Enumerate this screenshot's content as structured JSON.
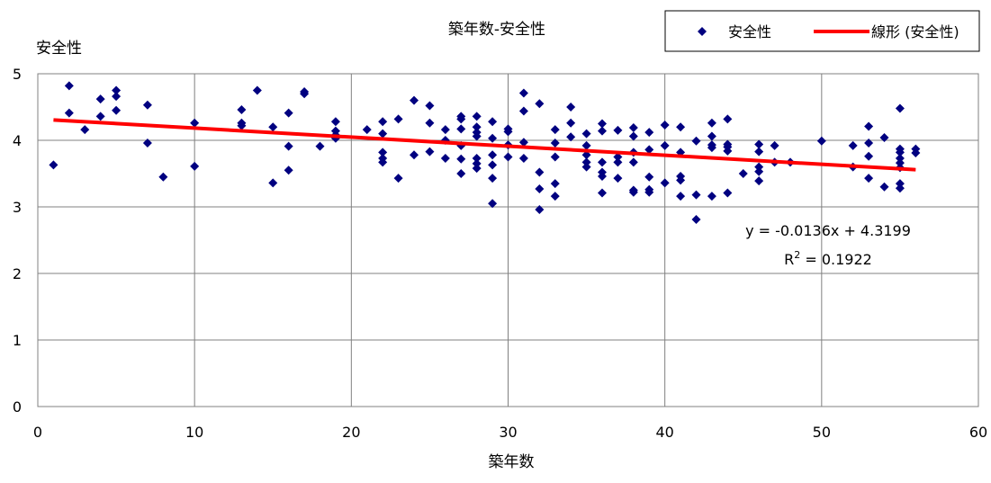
{
  "chart_data": {
    "type": "scatter",
    "title": "築年数-安全性",
    "xlabel": "築年数",
    "ylabel": "安全性",
    "xlim": [
      0,
      60
    ],
    "ylim": [
      0,
      5
    ],
    "xticks": [
      "0",
      "10",
      "20",
      "30",
      "40",
      "50",
      "60"
    ],
    "yticks": [
      "0",
      "1",
      "2",
      "3",
      "4",
      "5"
    ],
    "grid": true,
    "legend_position": "top-right",
    "series": [
      {
        "name": "安全性",
        "color": "#000080",
        "marker": "diamond",
        "points": [
          [
            1,
            3.63
          ],
          [
            2,
            4.82
          ],
          [
            2,
            4.41
          ],
          [
            3,
            4.16
          ],
          [
            4,
            4.62
          ],
          [
            4,
            4.36
          ],
          [
            5,
            4.75
          ],
          [
            5,
            4.66
          ],
          [
            5,
            4.45
          ],
          [
            7,
            4.53
          ],
          [
            7,
            3.96
          ],
          [
            8,
            3.45
          ],
          [
            10,
            4.26
          ],
          [
            10,
            3.61
          ],
          [
            13,
            4.46
          ],
          [
            13,
            4.26
          ],
          [
            13,
            4.22
          ],
          [
            14,
            4.75
          ],
          [
            15,
            4.2
          ],
          [
            15,
            3.36
          ],
          [
            16,
            4.41
          ],
          [
            16,
            3.91
          ],
          [
            16,
            3.55
          ],
          [
            17,
            4.73
          ],
          [
            17,
            4.7
          ],
          [
            18,
            3.91
          ],
          [
            19,
            4.28
          ],
          [
            19,
            4.14
          ],
          [
            19,
            4.08
          ],
          [
            19,
            4.03
          ],
          [
            21,
            4.16
          ],
          [
            22,
            4.28
          ],
          [
            22,
            4.1
          ],
          [
            22,
            3.82
          ],
          [
            22,
            3.73
          ],
          [
            22,
            3.67
          ],
          [
            23,
            4.32
          ],
          [
            23,
            3.43
          ],
          [
            24,
            4.6
          ],
          [
            24,
            3.78
          ],
          [
            25,
            4.52
          ],
          [
            25,
            4.26
          ],
          [
            25,
            3.83
          ],
          [
            26,
            4.16
          ],
          [
            26,
            4.0
          ],
          [
            26,
            3.73
          ],
          [
            27,
            4.36
          ],
          [
            27,
            4.32
          ],
          [
            27,
            4.17
          ],
          [
            27,
            3.92
          ],
          [
            27,
            3.72
          ],
          [
            27,
            3.5
          ],
          [
            28,
            4.36
          ],
          [
            28,
            4.2
          ],
          [
            28,
            4.12
          ],
          [
            28,
            4.06
          ],
          [
            28,
            3.73
          ],
          [
            28,
            3.65
          ],
          [
            28,
            3.58
          ],
          [
            29,
            4.28
          ],
          [
            29,
            4.03
          ],
          [
            29,
            3.78
          ],
          [
            29,
            3.63
          ],
          [
            29,
            3.43
          ],
          [
            29,
            3.05
          ],
          [
            30,
            4.17
          ],
          [
            30,
            4.13
          ],
          [
            30,
            3.93
          ],
          [
            30,
            3.75
          ],
          [
            31,
            4.71
          ],
          [
            31,
            4.44
          ],
          [
            31,
            3.97
          ],
          [
            31,
            3.73
          ],
          [
            32,
            4.55
          ],
          [
            32,
            3.52
          ],
          [
            32,
            3.27
          ],
          [
            32,
            2.96
          ],
          [
            33,
            4.16
          ],
          [
            33,
            3.96
          ],
          [
            33,
            3.75
          ],
          [
            33,
            3.35
          ],
          [
            33,
            3.16
          ],
          [
            34,
            4.5
          ],
          [
            34,
            4.26
          ],
          [
            34,
            4.05
          ],
          [
            35,
            4.1
          ],
          [
            35,
            3.92
          ],
          [
            35,
            3.78
          ],
          [
            35,
            3.67
          ],
          [
            35,
            3.6
          ],
          [
            36,
            4.25
          ],
          [
            36,
            4.14
          ],
          [
            36,
            3.67
          ],
          [
            36,
            3.52
          ],
          [
            36,
            3.46
          ],
          [
            36,
            3.21
          ],
          [
            37,
            4.15
          ],
          [
            37,
            3.75
          ],
          [
            37,
            3.67
          ],
          [
            37,
            3.43
          ],
          [
            38,
            4.19
          ],
          [
            38,
            4.06
          ],
          [
            38,
            3.82
          ],
          [
            38,
            3.67
          ],
          [
            38,
            3.25
          ],
          [
            38,
            3.22
          ],
          [
            39,
            4.12
          ],
          [
            39,
            3.86
          ],
          [
            39,
            3.45
          ],
          [
            39,
            3.26
          ],
          [
            39,
            3.22
          ],
          [
            40,
            4.23
          ],
          [
            40,
            3.92
          ],
          [
            40,
            3.36
          ],
          [
            41,
            4.2
          ],
          [
            41,
            3.82
          ],
          [
            41,
            3.46
          ],
          [
            41,
            3.4
          ],
          [
            41,
            3.16
          ],
          [
            42,
            3.99
          ],
          [
            42,
            3.18
          ],
          [
            42,
            2.81
          ],
          [
            43,
            4.26
          ],
          [
            43,
            4.06
          ],
          [
            43,
            3.93
          ],
          [
            43,
            3.89
          ],
          [
            43,
            3.16
          ],
          [
            44,
            4.32
          ],
          [
            44,
            3.94
          ],
          [
            44,
            3.9
          ],
          [
            44,
            3.84
          ],
          [
            44,
            3.21
          ],
          [
            45,
            3.5
          ],
          [
            46,
            3.94
          ],
          [
            46,
            3.83
          ],
          [
            46,
            3.6
          ],
          [
            46,
            3.53
          ],
          [
            46,
            3.39
          ],
          [
            47,
            3.92
          ],
          [
            47,
            3.67
          ],
          [
            48,
            3.67
          ],
          [
            50,
            3.99
          ],
          [
            52,
            3.92
          ],
          [
            52,
            3.6
          ],
          [
            53,
            4.21
          ],
          [
            53,
            3.96
          ],
          [
            53,
            3.76
          ],
          [
            53,
            3.43
          ],
          [
            54,
            4.04
          ],
          [
            54,
            3.3
          ],
          [
            55,
            4.48
          ],
          [
            55,
            3.87
          ],
          [
            55,
            3.82
          ],
          [
            55,
            3.73
          ],
          [
            55,
            3.66
          ],
          [
            55,
            3.59
          ],
          [
            55,
            3.35
          ],
          [
            55,
            3.28
          ],
          [
            56,
            3.87
          ],
          [
            56,
            3.81
          ]
        ]
      },
      {
        "name": "線形 (安全性)",
        "type": "line",
        "color": "#ff0000",
        "slope": -0.0136,
        "intercept": 4.3199,
        "x_range": [
          1,
          56
        ]
      }
    ],
    "annotations": {
      "equation": "y = -0.0136x + 4.3199",
      "r2_base": "R",
      "r2_exp": "2",
      "r2_value": " = 0.1922"
    }
  }
}
